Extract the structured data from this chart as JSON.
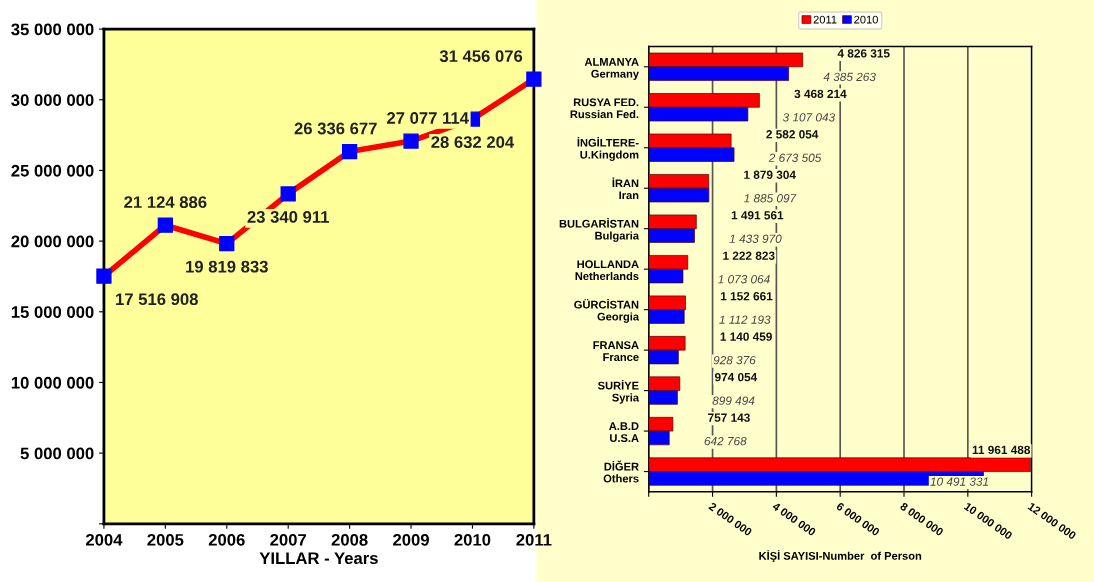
{
  "chart_data": [
    {
      "type": "line",
      "xlabel": "YILLAR - Years",
      "categories": [
        "2004",
        "2005",
        "2006",
        "2007",
        "2008",
        "2009",
        "2010",
        "2011"
      ],
      "series": [
        {
          "color": "#ff0000",
          "values": [
            17516908,
            21124886,
            19819833,
            23340911,
            26336677,
            27077114,
            28632204,
            31456076
          ]
        }
      ],
      "ylim": [
        0,
        35000000
      ],
      "yticks": [
        {
          "value": 0,
          "label": null
        },
        {
          "value": 5000000,
          "label": "5 000 000"
        },
        {
          "value": 10000000,
          "label": "10 000 000"
        },
        {
          "value": 15000000,
          "label": "15 000 000"
        },
        {
          "value": 20000000,
          "label": "20 000 000"
        },
        {
          "value": 25000000,
          "label": "25 000 000"
        },
        {
          "value": 30000000,
          "label": "30 000 000"
        },
        {
          "value": 35000000,
          "label": "35 000 000"
        }
      ],
      "marker": "square",
      "data_labels": true,
      "grid": false,
      "legend": false
    },
    {
      "type": "bar",
      "orientation": "horizontal",
      "xlabel": "KİŞİ SAYISI-Number  of Person",
      "categories": [
        "ALMANYA\nGermany",
        "RUSYA FED.\nRussian Fed.",
        "İNGİLTERE-\nU.Kingdom",
        "İRAN\nIran",
        "BULGARİSTAN\nBulgaria",
        "HOLLANDA\nNetherlands",
        "GÜRCİSTAN\nGeorgia",
        "FRANSA\nFrance",
        "SURİYE\nSyria",
        "A.B.D\nU.S.A",
        "DİĞER\nOthers"
      ],
      "series": [
        {
          "name": "2011",
          "color": "#ff0000",
          "values": [
            4826315,
            3468214,
            2582054,
            1879304,
            1491561,
            1222823,
            1152661,
            1140459,
            974054,
            757143,
            11961488
          ]
        },
        {
          "name": "2010",
          "color": "#0000ff",
          "values": [
            4385263,
            3107043,
            2673505,
            1885097,
            1433970,
            1073064,
            1112193,
            928376,
            899494,
            642768,
            10491331
          ]
        }
      ],
      "xlim": [
        0,
        12000000
      ],
      "xticks": [
        {
          "value": 0,
          "label": null
        },
        {
          "value": 2000000,
          "label": "2 000 000"
        },
        {
          "value": 4000000,
          "label": "4 000 000"
        },
        {
          "value": 6000000,
          "label": "6 000 000"
        },
        {
          "value": 8000000,
          "label": "8 000 000"
        },
        {
          "value": 10000000,
          "label": "10 000 000"
        },
        {
          "value": 12000000,
          "label": "12 000 000"
        }
      ],
      "grid": "x",
      "legend": "top",
      "data_labels": true
    }
  ]
}
